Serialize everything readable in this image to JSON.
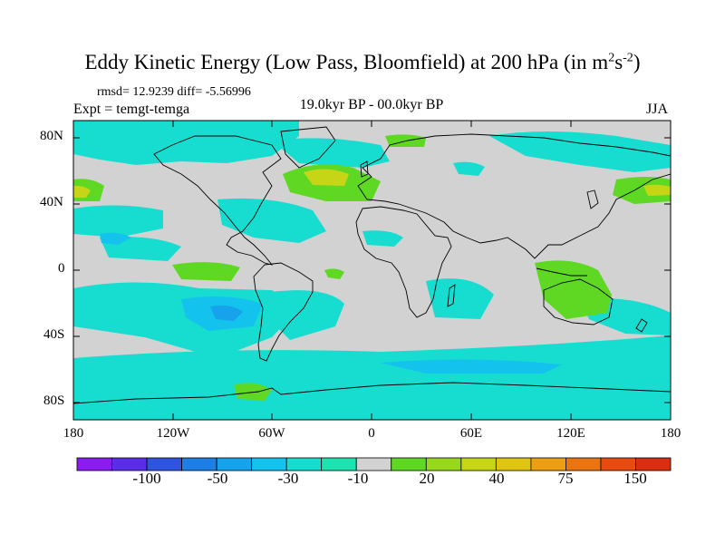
{
  "title_main": "Eddy Kinetic Energy (Low Pass, Bloomfield) at 200 hPa (in m",
  "title_sup1": "2",
  "title_mid": "s",
  "title_sup2": "-2",
  "title_end": ")",
  "stats": "rmsd= 12.9239 diff= -5.56996",
  "expt": "Expt = temgt-temga",
  "subtitle": "19.0kyr BP - 00.0kyr BP",
  "season": "JJA",
  "y_ticks": [
    "80N",
    "40N",
    "0",
    "40S",
    "80S"
  ],
  "x_ticks": [
    "180",
    "120W",
    "60W",
    "0",
    "60E",
    "120E",
    "180"
  ],
  "colorbar": {
    "labels": [
      "-100",
      "-50",
      "-30",
      "-10",
      "20",
      "40",
      "75",
      "150"
    ],
    "colors": [
      "#8a1cf0",
      "#5a2ee8",
      "#2f55e0",
      "#1d7ee6",
      "#16a3ec",
      "#13c3ee",
      "#17dcd0",
      "#1de3b0",
      "#d2d2d2",
      "#5ed822",
      "#98d81a",
      "#c6d616",
      "#e0c412",
      "#ec9f10",
      "#ec7410",
      "#e84b10",
      "#d92f10"
    ]
  },
  "map_colors": {
    "ocean_neutral": "#d2d2d2",
    "neg_light": "#1de3b0",
    "neg_mid": "#17dcd0",
    "neg_strong": "#13c3ee",
    "neg_deep": "#16a3ec",
    "pos_light": "#5ed822",
    "pos_mid": "#98d81a",
    "pos_strong": "#c6d616"
  }
}
